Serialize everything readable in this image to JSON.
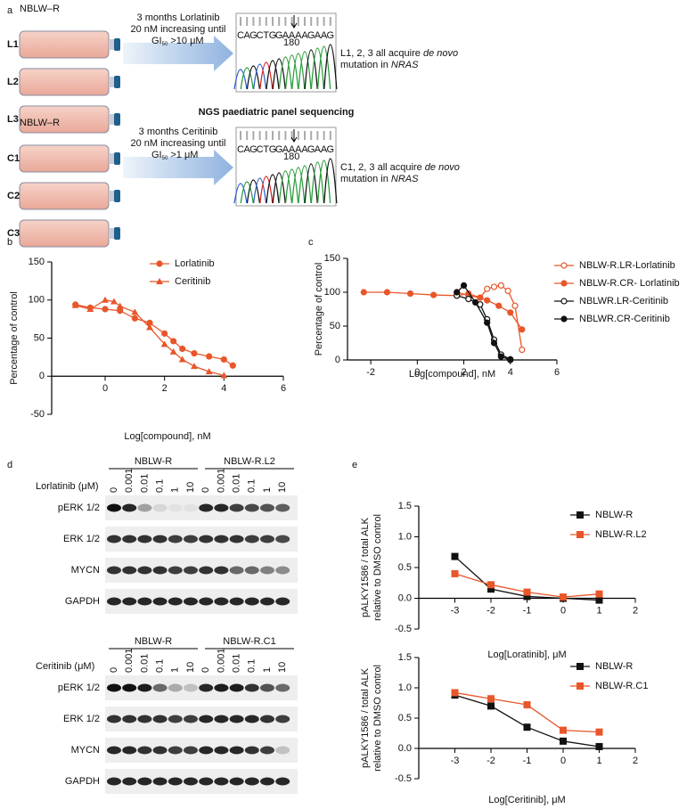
{
  "panel_a": {
    "panel": "a",
    "method": "NGS paediatric panel sequencing",
    "blocks": [
      {
        "cell_line": "NBLW–R",
        "clones": [
          "L1",
          "L2",
          "L3"
        ],
        "treatment": [
          "3 months Lorlatinib",
          "20 nM increasing until"
        ],
        "threshold": [
          "GI",
          "50",
          " >10 μM"
        ],
        "sequence": [
          "C",
          "A",
          "G",
          "C",
          "T",
          "G",
          "G",
          "A",
          "A",
          "A",
          "A",
          "G",
          "A",
          "A",
          "G"
        ],
        "position": "180",
        "result": [
          [
            "L1, 2, 3 all acquire ",
            "de novo"
          ],
          [
            "mutation in ",
            "NRAS"
          ]
        ]
      },
      {
        "cell_line": "NBLW–R",
        "clones": [
          "C1",
          "C2",
          "C3"
        ],
        "treatment": [
          "3 months Ceritinib",
          "20 nM increasing until"
        ],
        "threshold": [
          "GI",
          "50",
          " >1 μM"
        ],
        "sequence": [
          "C",
          "A",
          "G",
          "C",
          "T",
          "G",
          "G",
          "A",
          "A",
          "A",
          "A",
          "G",
          "A",
          "A",
          "G"
        ],
        "position": "180",
        "result": [
          [
            "C1, 2, 3 all acquire ",
            "de novo"
          ],
          [
            "mutation in ",
            "NRAS"
          ]
        ]
      }
    ]
  },
  "panel_d": {
    "panel": "d",
    "blots": [
      {
        "groups": [
          "NBLW-R",
          "NBLW-R.L2"
        ],
        "treatment": "Lorlatinib (μM)",
        "concentrations": [
          "0",
          "0.001",
          "0.01",
          "0.1",
          "1",
          "10"
        ],
        "rows": [
          "pERK 1/2",
          "ERK 1/2",
          "MYCN",
          "GAPDH"
        ]
      },
      {
        "groups": [
          "NBLW-R",
          "NBLW-R.C1"
        ],
        "treatment": "Ceritinib (μM)",
        "concentrations": [
          "0",
          "0.001",
          "0.01",
          "0.1",
          "1",
          "10"
        ],
        "rows": [
          "pERK 1/2",
          "ERK 1/2",
          "MYCN",
          "GAPDH"
        ]
      }
    ]
  },
  "chart_data": [
    {
      "type": "line",
      "panel": "b",
      "xlabel": "Log[compound], nM",
      "ylabel": "Percentage of control",
      "xlim": [
        -1.8,
        6
      ],
      "xticks": [
        0,
        2,
        4,
        6
      ],
      "ylim": [
        -50,
        150
      ],
      "yticks": [
        -50,
        0,
        50,
        100,
        150
      ],
      "series": [
        {
          "name": "Lorlatinib",
          "color": "#e8562a",
          "marker": "circle",
          "x": [
            -1,
            -0.5,
            0,
            0.5,
            1,
            1.5,
            2,
            2.3,
            2.6,
            3,
            3.5,
            4,
            4.3
          ],
          "values": [
            94,
            90,
            88,
            86,
            76,
            70,
            56,
            46,
            36,
            30,
            26,
            22,
            14
          ]
        },
        {
          "name": "Ceritinib",
          "color": "#e8562a",
          "marker": "triangle",
          "x": [
            -1,
            -0.5,
            0,
            0.3,
            0.5,
            1,
            1.5,
            2,
            2.3,
            2.6,
            3,
            3.5,
            4
          ],
          "values": [
            93,
            88,
            100,
            98,
            92,
            84,
            64,
            42,
            32,
            22,
            13,
            6,
            1
          ]
        }
      ]
    },
    {
      "type": "line",
      "panel": "c",
      "xlabel": "Log[compound], nM",
      "ylabel": "Percentage of control",
      "xlim": [
        -3,
        6
      ],
      "xticks": [
        -2,
        0,
        2,
        4,
        6
      ],
      "ylim": [
        0,
        150
      ],
      "yticks": [
        0,
        50,
        100,
        150
      ],
      "series": [
        {
          "name": "NBLW-R.LR-Lorlatinib",
          "color": "#e8562a",
          "marker": "open-circle",
          "x": [
            1.7,
            2.2,
            2.7,
            3,
            3.3,
            3.6,
            3.9,
            4.2,
            4.5
          ],
          "values": [
            100,
            95,
            92,
            105,
            108,
            110,
            102,
            80,
            15
          ]
        },
        {
          "name": "NBLW-R.CR- Lorlatinib",
          "color": "#e8562a",
          "marker": "circle",
          "x": [
            -2.3,
            -1.3,
            -0.3,
            0.7,
            1.7,
            2.2,
            2.7,
            3,
            3.5,
            4,
            4.5
          ],
          "values": [
            100,
            100,
            98,
            96,
            95,
            98,
            92,
            88,
            80,
            70,
            45
          ]
        },
        {
          "name": "NBLWR.LR-Ceritinib",
          "color": "#111111",
          "marker": "open-circle",
          "x": [
            1.7,
            2.2,
            2.7,
            3,
            3.3,
            3.6,
            4
          ],
          "values": [
            95,
            90,
            82,
            60,
            30,
            8,
            1
          ]
        },
        {
          "name": "NBLWR.CR-Ceritinib",
          "color": "#111111",
          "marker": "circle",
          "x": [
            1.7,
            2,
            2.5,
            3,
            3.3,
            3.6,
            4
          ],
          "values": [
            100,
            110,
            85,
            55,
            25,
            5,
            0
          ]
        }
      ]
    },
    {
      "type": "line",
      "panel": "e",
      "xlabel": "Log[Loratinib], μM",
      "ylabel": [
        "pALKY1586 / total ALK",
        "relative to DMSO control"
      ],
      "xlim": [
        -4,
        2
      ],
      "xticks": [
        -3,
        -2,
        -1,
        0,
        1,
        2
      ],
      "ylim": [
        -0.5,
        1.5
      ],
      "yticks": [
        -0.5,
        {
          "value": 0,
          "label": "0.0"
        },
        0.5,
        {
          "value": 1,
          "label": "1.0"
        },
        1.5
      ],
      "series": [
        {
          "name": "NBLW-R",
          "color": "#111111",
          "marker": "square",
          "x": [
            -3,
            -2,
            -1,
            0,
            1
          ],
          "values": [
            0.68,
            0.15,
            0.03,
            0.0,
            -0.03
          ]
        },
        {
          "name": "NBLW-R.L2",
          "color": "#e8562a",
          "marker": "square",
          "x": [
            -3,
            -2,
            -1,
            0,
            1
          ],
          "values": [
            0.4,
            0.22,
            0.1,
            0.02,
            0.07
          ]
        }
      ]
    },
    {
      "type": "line",
      "xlabel": "Log[Ceritinib], μM",
      "ylabel": [
        "pALKY1586 / total ALK",
        "relative to DMSO control"
      ],
      "xlim": [
        -4,
        2
      ],
      "xticks": [
        -3,
        -2,
        -1,
        0,
        1,
        2
      ],
      "ylim": [
        -0.5,
        1.5
      ],
      "yticks": [
        -0.5,
        {
          "value": 0,
          "label": "0.0"
        },
        0.5,
        {
          "value": 1,
          "label": "1.0"
        },
        1.5
      ],
      "series": [
        {
          "name": "NBLW-R",
          "color": "#111111",
          "marker": "square",
          "x": [
            -3,
            -2,
            -1,
            0,
            1
          ],
          "values": [
            0.88,
            0.7,
            0.35,
            0.12,
            0.03
          ]
        },
        {
          "name": "NBLW-R.C1",
          "color": "#e8562a",
          "marker": "square",
          "x": [
            -3,
            -2,
            -1,
            0,
            1
          ],
          "values": [
            0.92,
            0.82,
            0.72,
            0.3,
            0.27
          ]
        }
      ]
    }
  ]
}
